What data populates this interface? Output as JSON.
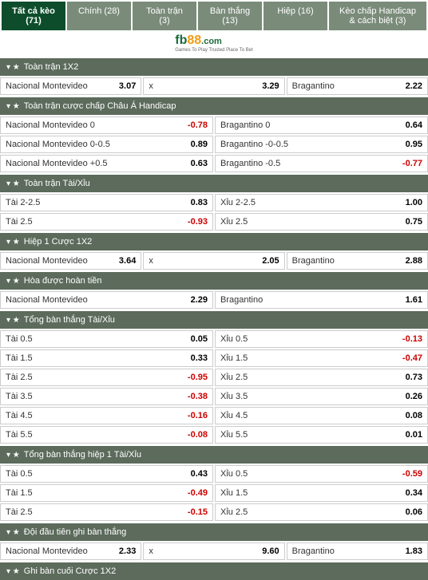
{
  "tabs": [
    {
      "label": "Tất cả kèo (71)",
      "active": true
    },
    {
      "label": "Chính (28)",
      "active": false
    },
    {
      "label": "Toàn trận (3)",
      "active": false
    },
    {
      "label": "Bàn thắng (13)",
      "active": false
    },
    {
      "label": "Hiệp (16)",
      "active": false
    },
    {
      "label": "Kèo chấp Handicap & cách biệt (3)",
      "active": false
    }
  ],
  "logo": {
    "fb": "fb",
    "num": "88",
    "com": ".com",
    "sub": "Games To Play Trusted Place To Bet"
  },
  "sections": [
    {
      "title": "Toàn trận 1X2",
      "rows": [
        [
          {
            "label": "Nacional Montevideo",
            "odds": "3.07"
          },
          {
            "label": "x",
            "odds": "3.29"
          },
          {
            "label": "Bragantino",
            "odds": "2.22"
          }
        ]
      ],
      "cols": 3
    },
    {
      "title": "Toàn trận cược chấp Châu Á Handicap",
      "rows": [
        [
          {
            "label": "Nacional Montevideo 0",
            "odds": "-0.78",
            "neg": true
          },
          {
            "label": "Bragantino 0",
            "odds": "0.64"
          }
        ],
        [
          {
            "label": "Nacional Montevideo 0-0.5",
            "odds": "0.89"
          },
          {
            "label": "Bragantino -0-0.5",
            "odds": "0.95"
          }
        ],
        [
          {
            "label": "Nacional Montevideo +0.5",
            "odds": "0.63"
          },
          {
            "label": "Bragantino -0.5",
            "odds": "-0.77",
            "neg": true
          }
        ]
      ],
      "cols": 2
    },
    {
      "title": "Toàn trận Tài/Xỉu",
      "rows": [
        [
          {
            "label": "Tài 2-2.5",
            "odds": "0.83"
          },
          {
            "label": "Xỉu 2-2.5",
            "odds": "1.00"
          }
        ],
        [
          {
            "label": "Tài 2.5",
            "odds": "-0.93",
            "neg": true
          },
          {
            "label": "Xỉu 2.5",
            "odds": "0.75"
          }
        ]
      ],
      "cols": 2
    },
    {
      "title": "Hiệp 1 Cược 1X2",
      "rows": [
        [
          {
            "label": "Nacional Montevideo",
            "odds": "3.64"
          },
          {
            "label": "x",
            "odds": "2.05"
          },
          {
            "label": "Bragantino",
            "odds": "2.88"
          }
        ]
      ],
      "cols": 3
    },
    {
      "title": "Hòa được hoàn tiền",
      "rows": [
        [
          {
            "label": "Nacional Montevideo",
            "odds": "2.29"
          },
          {
            "label": "Bragantino",
            "odds": "1.61"
          }
        ]
      ],
      "cols": 2
    },
    {
      "title": "Tổng bàn thắng Tài/Xỉu",
      "rows": [
        [
          {
            "label": "Tài 0.5",
            "odds": "0.05"
          },
          {
            "label": "Xỉu 0.5",
            "odds": "-0.13",
            "neg": true
          }
        ],
        [
          {
            "label": "Tài 1.5",
            "odds": "0.33"
          },
          {
            "label": "Xỉu 1.5",
            "odds": "-0.47",
            "neg": true
          }
        ],
        [
          {
            "label": "Tài 2.5",
            "odds": "-0.95",
            "neg": true
          },
          {
            "label": "Xỉu 2.5",
            "odds": "0.73"
          }
        ],
        [
          {
            "label": "Tài 3.5",
            "odds": "-0.38",
            "neg": true
          },
          {
            "label": "Xỉu 3.5",
            "odds": "0.26"
          }
        ],
        [
          {
            "label": "Tài 4.5",
            "odds": "-0.16",
            "neg": true
          },
          {
            "label": "Xỉu 4.5",
            "odds": "0.08"
          }
        ],
        [
          {
            "label": "Tài 5.5",
            "odds": "-0.08",
            "neg": true
          },
          {
            "label": "Xỉu 5.5",
            "odds": "0.01"
          }
        ]
      ],
      "cols": 2
    },
    {
      "title": "Tổng bàn thắng hiệp 1 Tài/Xỉu",
      "rows": [
        [
          {
            "label": "Tài 0.5",
            "odds": "0.43"
          },
          {
            "label": "Xỉu 0.5",
            "odds": "-0.59",
            "neg": true
          }
        ],
        [
          {
            "label": "Tài 1.5",
            "odds": "-0.49",
            "neg": true
          },
          {
            "label": "Xỉu 1.5",
            "odds": "0.34"
          }
        ],
        [
          {
            "label": "Tài 2.5",
            "odds": "-0.15",
            "neg": true
          },
          {
            "label": "Xỉu 2.5",
            "odds": "0.06"
          }
        ]
      ],
      "cols": 2
    },
    {
      "title": "Đội đầu tiên ghi bàn thắng",
      "rows": [
        [
          {
            "label": "Nacional Montevideo",
            "odds": "2.33"
          },
          {
            "label": "x",
            "odds": "9.60"
          },
          {
            "label": "Bragantino",
            "odds": "1.83"
          }
        ]
      ],
      "cols": 3
    },
    {
      "title": "Ghi bàn cuối Cược 1X2",
      "rows": [],
      "cols": 3
    }
  ]
}
